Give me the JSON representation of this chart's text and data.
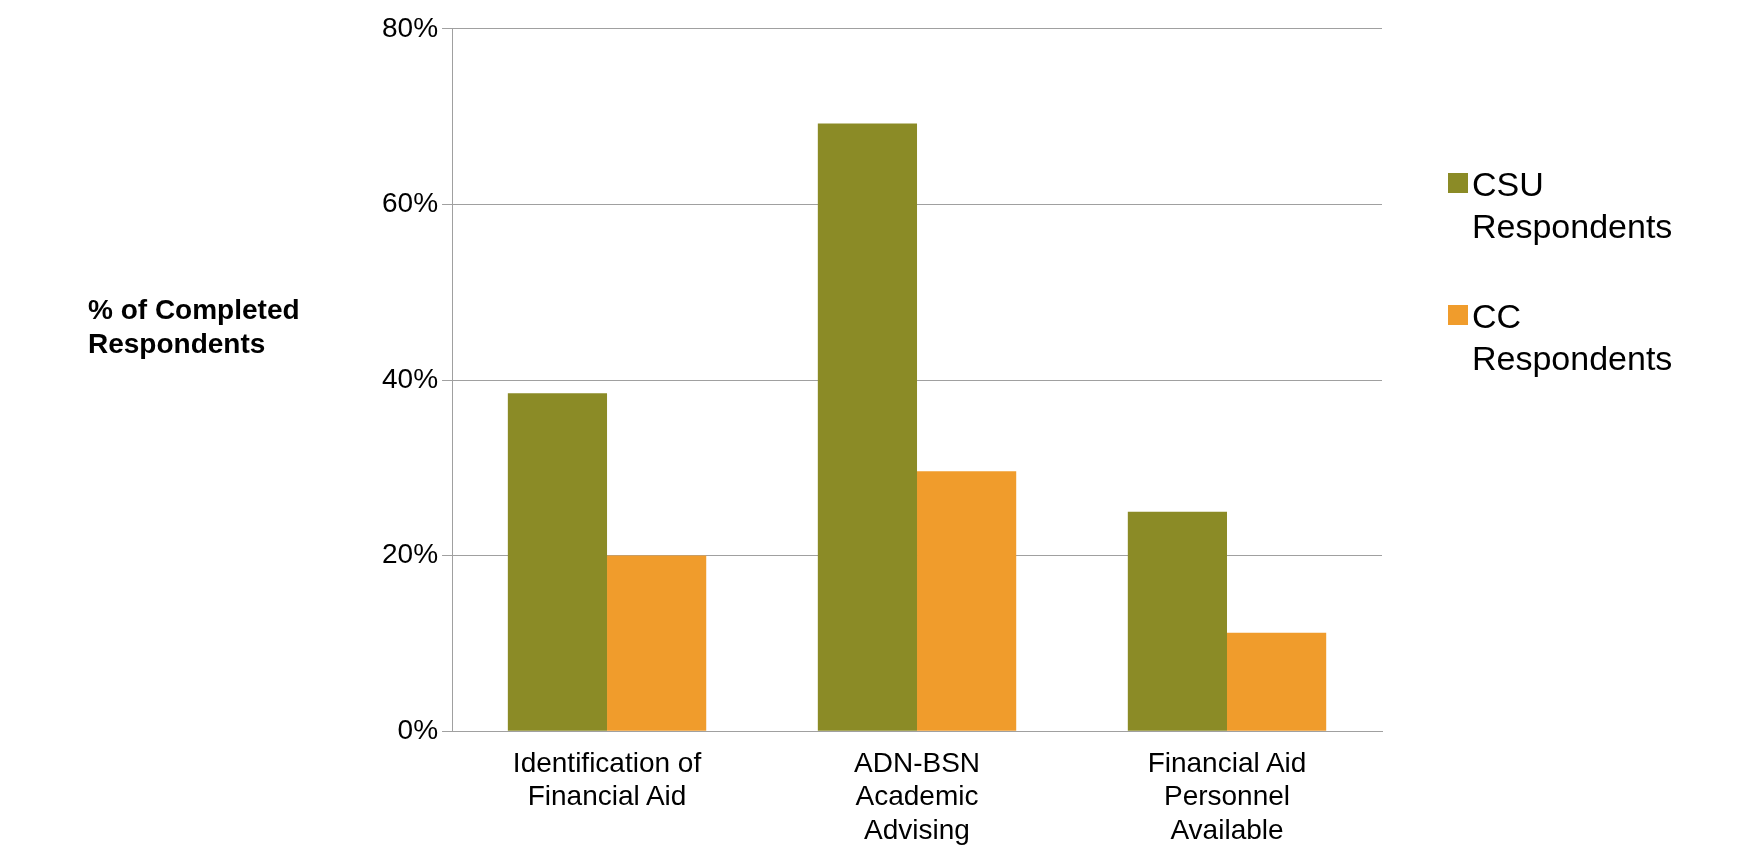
{
  "chart_data": {
    "type": "bar",
    "ylabel": "% of Completed Respondents",
    "categories": [
      "Identification of Financial Aid",
      "ADN-BSN Academic Advising",
      "Financial Aid Personnel Available"
    ],
    "series": [
      {
        "name": "CSU Respondents",
        "color": "#8b8b26",
        "values": [
          38.5,
          69.2,
          25.0
        ]
      },
      {
        "name": "CC Respondents",
        "color": "#f09c2c",
        "values": [
          20.0,
          29.6,
          11.2
        ]
      }
    ],
    "ylim": [
      0,
      80
    ],
    "yticks": [
      {
        "value": 0,
        "label": "0%"
      },
      {
        "value": 20,
        "label": "20%"
      },
      {
        "value": 40,
        "label": "40%"
      },
      {
        "value": 60,
        "label": "60%"
      },
      {
        "value": 80,
        "label": "80%"
      }
    ],
    "grid": "y",
    "legend": "right"
  }
}
